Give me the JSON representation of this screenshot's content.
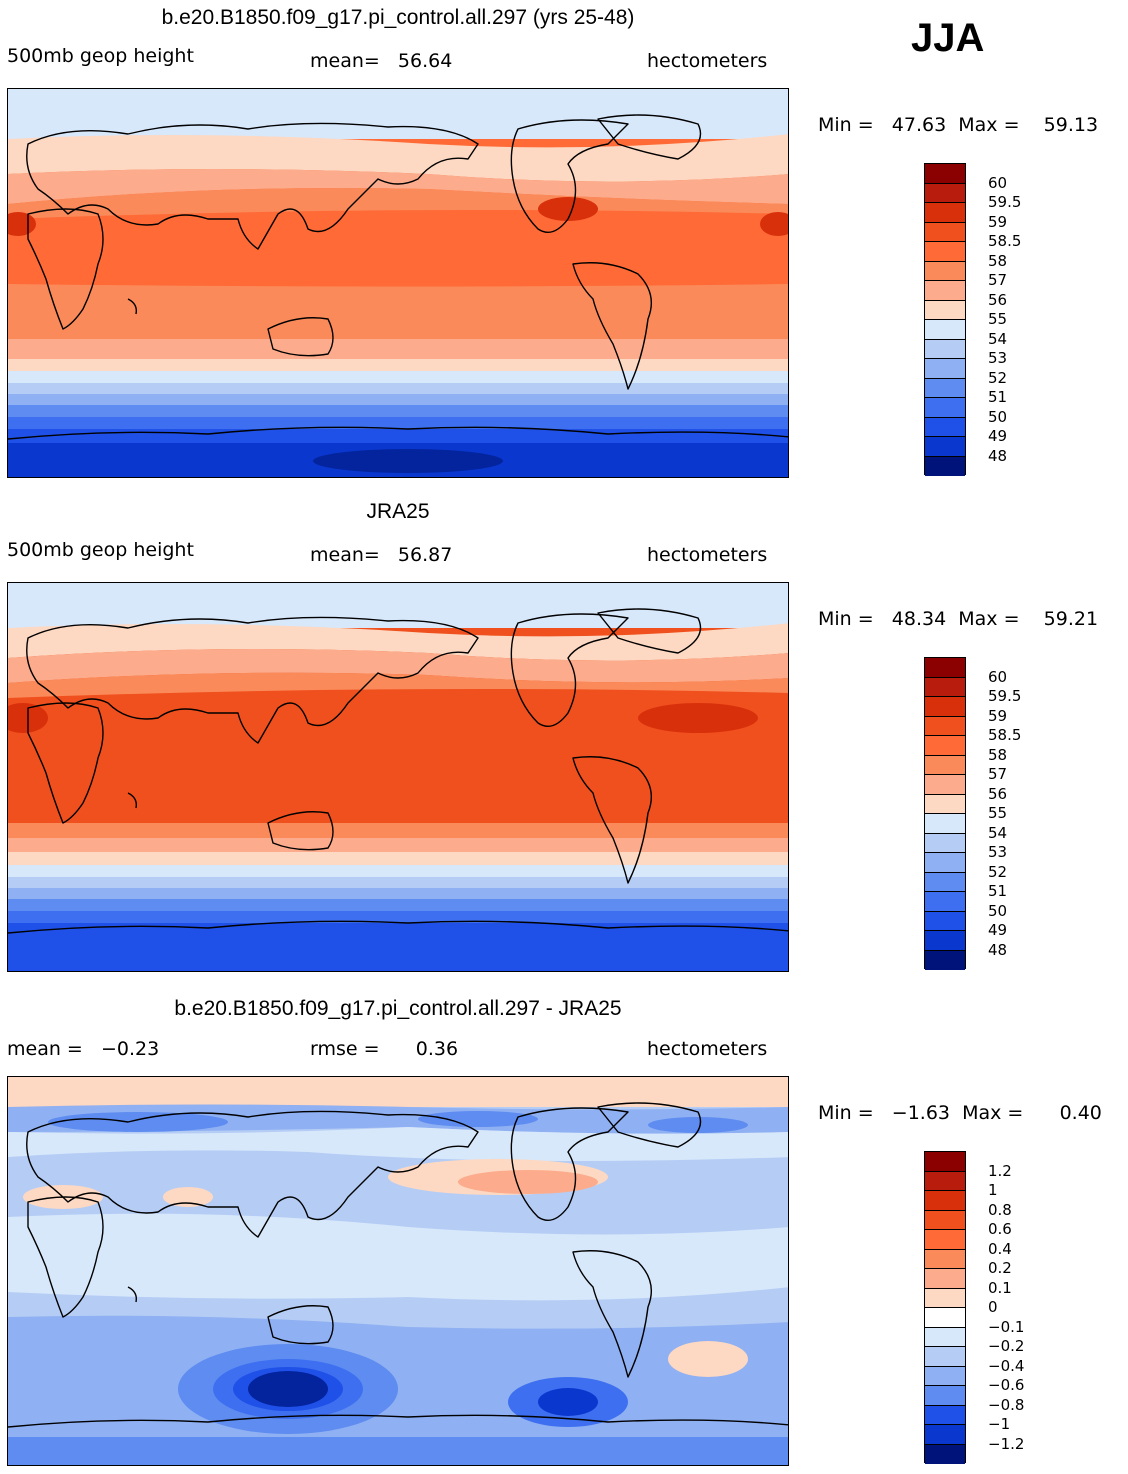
{
  "season": "JJA",
  "panels": [
    {
      "title": "b.e20.B1850.f09_g17.pi_control.all.297 (yrs 25-48)",
      "left_label": "500mb geop height",
      "center_label": "mean=   56.64",
      "units": "hectometers",
      "minmax": "Min =   47.63  Max =    59.13",
      "colorbar": [
        "60",
        "59.5",
        "59",
        "58.5",
        "58",
        "57",
        "56",
        "55",
        "54",
        "53",
        "52",
        "51",
        "50",
        "49",
        "48"
      ]
    },
    {
      "title": "JRA25",
      "left_label": "500mb geop height",
      "center_label": "mean=   56.87",
      "units": "hectometers",
      "minmax": "Min =   48.34  Max =    59.21",
      "colorbar": [
        "60",
        "59.5",
        "59",
        "58.5",
        "58",
        "57",
        "56",
        "55",
        "54",
        "53",
        "52",
        "51",
        "50",
        "49",
        "48"
      ]
    },
    {
      "title": "b.e20.B1850.f09_g17.pi_control.all.297 - JRA25",
      "left_label": "mean =   −0.23",
      "center_label": "rmse =      0.36",
      "units": "hectometers",
      "minmax": "Min =   −1.63  Max =      0.40",
      "colorbar": [
        "1.2",
        "1",
        "0.8",
        "0.6",
        "0.4",
        "0.2",
        "0.1",
        "0",
        "−0.1",
        "−0.2",
        "−0.4",
        "−0.6",
        "−0.8",
        "−1",
        "−1.2"
      ]
    }
  ],
  "colors": {
    "scale": [
      "#8b0000",
      "#b71c0d",
      "#d9300c",
      "#f0501d",
      "#ff6a36",
      "#fb8a5a",
      "#fcac8c",
      "#fdd8c2",
      "#ffffff",
      "#d8e8fb",
      "#b5cdf5",
      "#8fb0f2",
      "#5e8cf0",
      "#3d6ff0",
      "#1f50e8",
      "#0a38cf",
      "#04249e",
      "#00137a"
    ],
    "land_outline": "#000000"
  }
}
